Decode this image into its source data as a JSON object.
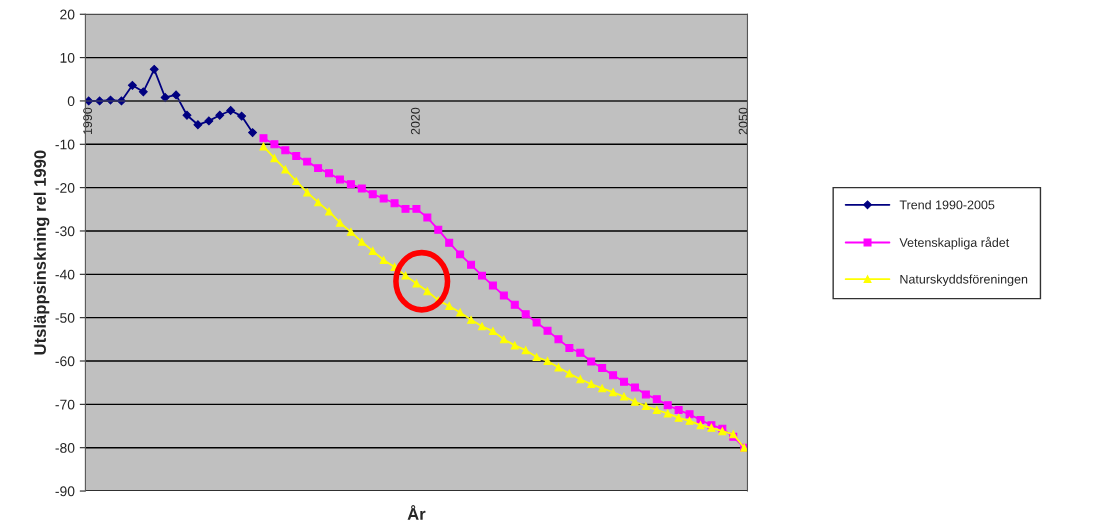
{
  "chart_data": {
    "type": "line",
    "ylabel": "Utsläppsinskning rel 1990",
    "xlabel": "År",
    "categories": [
      "1990",
      null,
      null,
      null,
      null,
      null,
      null,
      null,
      null,
      null,
      null,
      null,
      null,
      null,
      null,
      null,
      null,
      null,
      null,
      null,
      null,
      null,
      null,
      null,
      null,
      null,
      null,
      null,
      null,
      null,
      "2020",
      null,
      null,
      null,
      null,
      null,
      null,
      null,
      null,
      null,
      null,
      null,
      null,
      null,
      null,
      null,
      null,
      null,
      null,
      null,
      null,
      null,
      null,
      null,
      null,
      null,
      null,
      null,
      null,
      null,
      "2050"
    ],
    "series": [
      {
        "name": "Trend 1990-2005",
        "color": "#000080",
        "marker": "diamond",
        "values": [
          0,
          0,
          0.2,
          0,
          3.6,
          2.1,
          7.3,
          0.8,
          1.4,
          -3.3,
          -5.5,
          -4.6,
          -3.3,
          -2.2,
          -3.5,
          -7.3,
          null,
          null,
          null,
          null,
          null,
          null,
          null,
          null,
          null,
          null,
          null,
          null,
          null,
          null,
          null,
          null,
          null,
          null,
          null,
          null,
          null,
          null,
          null,
          null,
          null,
          null,
          null,
          null,
          null,
          null,
          null,
          null,
          null,
          null,
          null,
          null,
          null,
          null,
          null,
          null,
          null,
          null,
          null,
          null,
          null
        ]
      },
      {
        "name": "Vetenskapliga rådet",
        "color": "#ff00ff",
        "marker": "square",
        "values": [
          null,
          null,
          null,
          null,
          null,
          null,
          null,
          null,
          null,
          null,
          null,
          null,
          null,
          null,
          null,
          null,
          -8.6,
          -10.0,
          -11.4,
          -12.7,
          -14.0,
          -15.5,
          -16.7,
          -18.1,
          -19.2,
          -20.2,
          -21.5,
          -22.5,
          -23.6,
          -24.9,
          -24.9,
          -26.9,
          -29.7,
          -32.7,
          -35.4,
          -37.8,
          -40.3,
          -42.6,
          -44.9,
          -47.0,
          -49.2,
          -51.1,
          -53.0,
          -55.0,
          -57.0,
          -58.1,
          -60.1,
          -61.6,
          -63.3,
          -64.8,
          -66.1,
          -67.7,
          -68.8,
          -70.2,
          -71.3,
          -72.3,
          -73.6,
          -74.8,
          -75.6,
          -77.5,
          -80.0
        ]
      },
      {
        "name": "Naturskyddsföreningen",
        "color": "#ffff00",
        "marker": "triangle",
        "values": [
          null,
          null,
          null,
          null,
          null,
          null,
          null,
          null,
          null,
          null,
          null,
          null,
          null,
          null,
          null,
          null,
          -10.5,
          -13.2,
          -15.8,
          -18.5,
          -21.1,
          -23.4,
          -25.5,
          -28.1,
          -30.2,
          -32.5,
          -34.6,
          -36.7,
          -38.3,
          -40.3,
          -42.1,
          -43.9,
          -46.0,
          -47.3,
          -48.8,
          -50.5,
          -52.0,
          -53.1,
          -55.0,
          -56.4,
          -57.5,
          -59.1,
          -60.0,
          -61.5,
          -62.9,
          -64.2,
          -65.3,
          -66.3,
          -67.2,
          -68.2,
          -69.4,
          -70.4,
          -71.3,
          -72.1,
          -73.1,
          -73.8,
          -74.8,
          -75.4,
          -76.2,
          -76.9,
          -80.0
        ]
      }
    ],
    "ylim": [
      -90,
      20
    ],
    "yticks": [
      -90,
      -80,
      -70,
      -60,
      -50,
      -40,
      -30,
      -20,
      -10,
      0,
      10,
      20
    ],
    "grid": "y",
    "legend": "right",
    "line_style": "solid"
  }
}
